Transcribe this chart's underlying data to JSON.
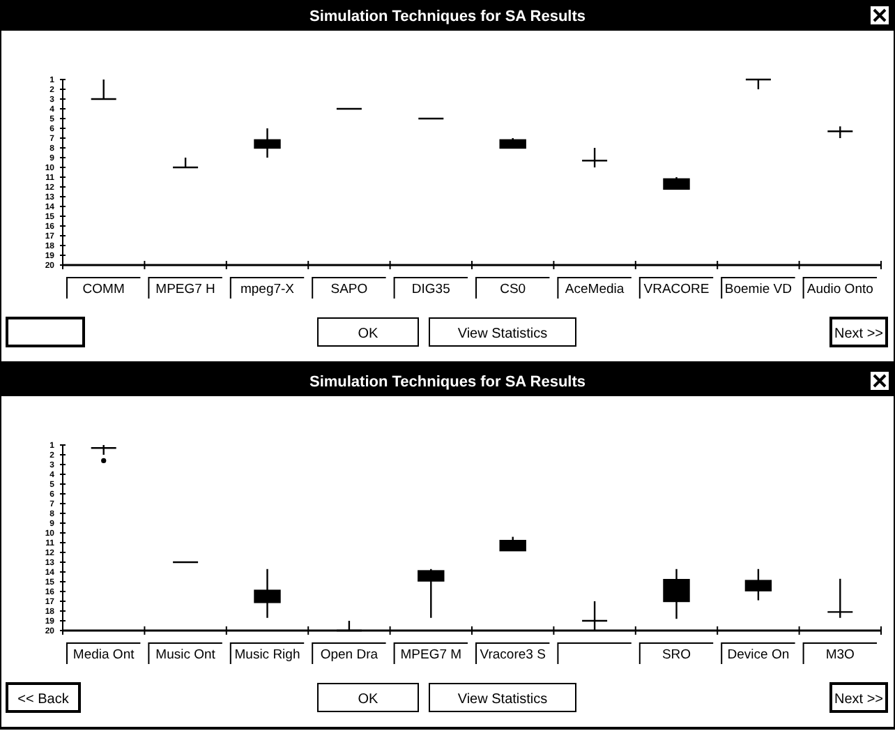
{
  "chart_data": [
    {
      "type": "box",
      "title": "Simulation Techniques for SA Results",
      "categories": [
        "COMM",
        "MPEG7 H",
        "mpeg7-X",
        "SAPO",
        "DIG35",
        "CS0",
        "AceMedia",
        "VRACORE",
        "Boemie VD",
        "Audio Onto"
      ],
      "series": [
        {
          "color": "#000000",
          "boxes": [
            {
              "low": 1,
              "q1": 3,
              "median": 3,
              "q3": 3,
              "high": 3
            },
            {
              "low": 9,
              "q1": 10,
              "median": 10,
              "q3": 10,
              "high": 10
            },
            {
              "low": 6,
              "q1": 7.2,
              "median": 7.6,
              "q3": 8,
              "high": 9
            },
            {
              "low": 4,
              "q1": 4,
              "median": 4,
              "q3": 4,
              "high": 4
            },
            {
              "low": 5,
              "q1": 5,
              "median": 5,
              "q3": 5,
              "high": 5
            },
            {
              "low": 7,
              "q1": 7.2,
              "median": 7.6,
              "q3": 8,
              "high": 8
            },
            {
              "low": 8,
              "q1": 9.3,
              "median": 9.3,
              "q3": 9.3,
              "high": 10
            },
            {
              "low": 11,
              "q1": 11.2,
              "median": 11.7,
              "q3": 12.2,
              "high": 12.2
            },
            {
              "low": 1,
              "q1": 1,
              "median": 1,
              "q3": 1,
              "high": 2
            },
            {
              "low": 5.8,
              "q1": 6.3,
              "median": 6.3,
              "q3": 6.3,
              "high": 7
            }
          ]
        }
      ],
      "ylim": [
        20,
        1
      ],
      "yticks": [
        1,
        2,
        3,
        4,
        5,
        6,
        7,
        8,
        9,
        10,
        11,
        12,
        13,
        14,
        15,
        16,
        17,
        18,
        19,
        20
      ],
      "annotations": [
        "OK",
        "View Statistics",
        "Next >>"
      ]
    },
    {
      "type": "box",
      "title": "Simulation Techniques for SA Results",
      "categories": [
        "Media Ont",
        "Music Ont",
        "Music Righ",
        "Open Dra",
        "MPEG7 M",
        "Vracore3 S",
        null,
        "SRO",
        "Device On",
        "M3O"
      ],
      "series": [
        {
          "color": "#000000",
          "boxes": [
            {
              "low": 1,
              "q1": 1.3,
              "median": 1.3,
              "q3": 1.3,
              "high": 2,
              "outliers": [
                2.6
              ]
            },
            {
              "low": 13,
              "q1": 13,
              "median": 13,
              "q3": 13,
              "high": 13
            },
            {
              "low": 13.7,
              "q1": 15.9,
              "median": 16.5,
              "q3": 17.1,
              "high": 18.7
            },
            {
              "low": 19,
              "q1": 20,
              "median": 20,
              "q3": 20,
              "high": 20
            },
            {
              "low": 13.7,
              "q1": 13.9,
              "median": 14.4,
              "q3": 14.9,
              "high": 18.7
            },
            {
              "low": 10.4,
              "q1": 10.8,
              "median": 11.3,
              "q3": 11.8,
              "high": 11.8
            },
            {
              "low": 17,
              "q1": 19,
              "median": 19,
              "q3": 19,
              "high": 20
            },
            {
              "low": 13.7,
              "q1": 14.8,
              "median": 15.9,
              "q3": 17,
              "high": 18.8
            },
            {
              "low": 13.7,
              "q1": 14.9,
              "median": 15.4,
              "q3": 15.9,
              "high": 16.9
            },
            {
              "low": 14.7,
              "q1": 18.1,
              "median": 18.1,
              "q3": 18.1,
              "high": 18.7
            }
          ]
        }
      ],
      "ylim": [
        20,
        1
      ],
      "yticks": [
        1,
        2,
        3,
        4,
        5,
        6,
        7,
        8,
        9,
        10,
        11,
        12,
        13,
        14,
        15,
        16,
        17,
        18,
        19,
        20
      ],
      "annotations": [
        "<< Back",
        "OK",
        "View Statistics",
        "Next >>"
      ]
    }
  ]
}
